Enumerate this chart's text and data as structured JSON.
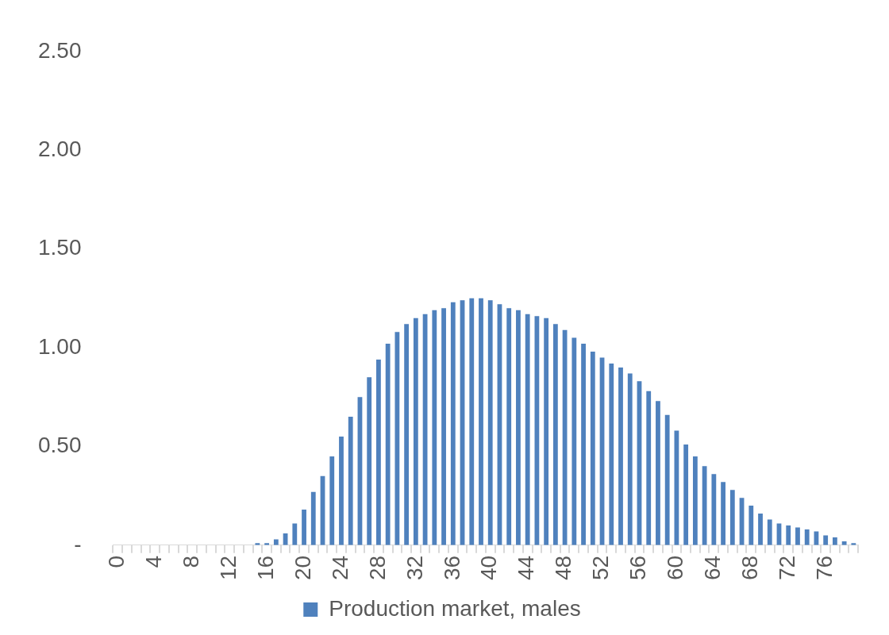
{
  "chart_data": {
    "type": "bar",
    "categories": [
      "0",
      null,
      null,
      null,
      "4",
      null,
      null,
      null,
      "8",
      null,
      null,
      null,
      "12",
      null,
      null,
      null,
      "16",
      null,
      null,
      null,
      "20",
      null,
      null,
      null,
      "24",
      null,
      null,
      null,
      "28",
      null,
      null,
      null,
      "32",
      null,
      null,
      null,
      "36",
      null,
      null,
      null,
      "40",
      null,
      null,
      null,
      "44",
      null,
      null,
      null,
      "48",
      null,
      null,
      null,
      "52",
      null,
      null,
      null,
      "56",
      null,
      null,
      null,
      "60",
      null,
      null,
      null,
      "64",
      null,
      null,
      null,
      "68",
      null,
      null,
      null,
      "72",
      null,
      null,
      null,
      "76",
      null,
      null,
      null
    ],
    "series": [
      {
        "name": "Production market, males",
        "color": "#4f81bd",
        "values": [
          0,
          0,
          0,
          0,
          0,
          0,
          0,
          0,
          0,
          0,
          0,
          0,
          0,
          0,
          0,
          0.01,
          0.01,
          0.03,
          0.06,
          0.11,
          0.18,
          0.27,
          0.35,
          0.45,
          0.55,
          0.65,
          0.75,
          0.85,
          0.94,
          1.02,
          1.08,
          1.12,
          1.15,
          1.17,
          1.19,
          1.2,
          1.23,
          1.24,
          1.25,
          1.25,
          1.24,
          1.22,
          1.2,
          1.19,
          1.17,
          1.16,
          1.15,
          1.12,
          1.09,
          1.05,
          1.02,
          0.98,
          0.95,
          0.92,
          0.9,
          0.87,
          0.83,
          0.78,
          0.73,
          0.66,
          0.58,
          0.51,
          0.45,
          0.4,
          0.36,
          0.32,
          0.28,
          0.24,
          0.2,
          0.16,
          0.13,
          0.11,
          0.1,
          0.09,
          0.08,
          0.07,
          0.05,
          0.04,
          0.02,
          0.01
        ]
      }
    ],
    "ylim": [
      0,
      2.5
    ],
    "yticks": [
      {
        "value": 0,
        "label": "-"
      },
      {
        "value": 0.5,
        "label": "0.50"
      },
      {
        "value": 1,
        "label": "1.00"
      },
      {
        "value": 1.5,
        "label": "1.50"
      },
      {
        "value": 2,
        "label": "2.00"
      },
      {
        "value": 2.5,
        "label": "2.50"
      }
    ],
    "grid": false,
    "legend": "bottom"
  }
}
